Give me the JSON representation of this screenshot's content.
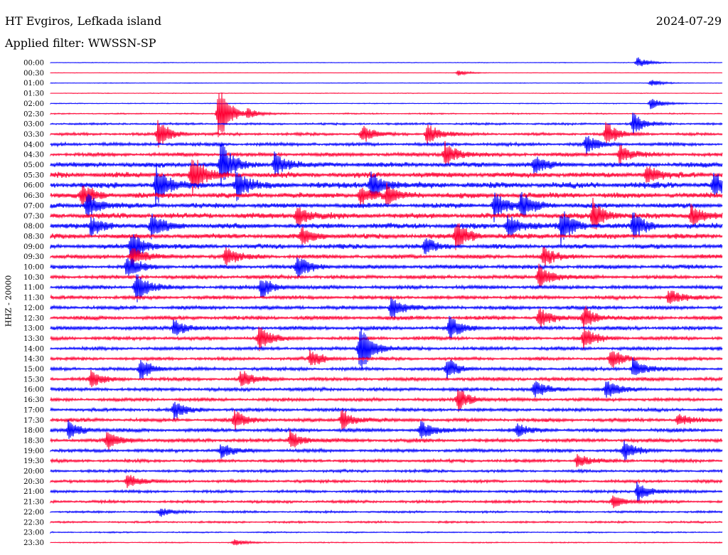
{
  "header": {
    "station": "HT Evgiros, Lefkada island",
    "filter": "Applied filter: WWSSN-SP",
    "date": "2024-07-29"
  },
  "colors": {
    "even_trace": "#0000ff",
    "odd_trace": "#ff0033",
    "background": "#ffffff"
  },
  "chart_data": {
    "type": "line",
    "chart_kind": "helicorder (seismogram drum)",
    "ylabel": "HHZ - 20000",
    "tick_labels": [
      "00:00",
      "00:30",
      "01:00",
      "01:30",
      "02:00",
      "02:30",
      "03:00",
      "03:30",
      "04:00",
      "04:30",
      "05:00",
      "05:30",
      "06:00",
      "06:30",
      "07:00",
      "07:30",
      "08:00",
      "08:30",
      "09:00",
      "09:30",
      "10:00",
      "10:30",
      "11:00",
      "11:30",
      "12:00",
      "12:30",
      "13:00",
      "13:30",
      "14:00",
      "14:30",
      "15:00",
      "15:30",
      "16:00",
      "16:30",
      "17:00",
      "17:30",
      "18:00",
      "18:30",
      "19:00",
      "19:30",
      "20:00",
      "20:30",
      "21:00",
      "21:30",
      "22:00",
      "22:30",
      "23:00",
      "23:30"
    ],
    "line_minutes": 30,
    "x_range_minutes": [
      0,
      30
    ],
    "trace_colors_alternate": [
      "blue",
      "red"
    ],
    "noise_level": [
      0.3,
      0.2,
      0.3,
      0.3,
      0.4,
      0.6,
      1.0,
      1.3,
      1.6,
      1.8,
      2.4,
      2.6,
      2.8,
      2.6,
      2.4,
      2.6,
      2.6,
      2.4,
      2.2,
      2.0,
      1.9,
      1.8,
      1.8,
      1.7,
      1.8,
      1.9,
      1.8,
      1.7,
      1.6,
      1.5,
      1.6,
      1.7,
      1.7,
      1.6,
      1.6,
      1.7,
      1.8,
      1.7,
      1.6,
      1.5,
      1.3,
      1.4,
      1.3,
      1.3,
      1.0,
      0.9,
      0.6,
      0.5
    ],
    "events": [
      {
        "line": 0,
        "minute": 26.2,
        "amplitude": 8
      },
      {
        "line": 1,
        "minute": 18.2,
        "amplitude": 4
      },
      {
        "line": 2,
        "minute": 26.8,
        "amplitude": 5
      },
      {
        "line": 4,
        "minute": 26.8,
        "amplitude": 9
      },
      {
        "line": 5,
        "minute": 8.8,
        "amplitude": 6
      },
      {
        "line": 5,
        "minute": 7.5,
        "amplitude": 45
      },
      {
        "line": 6,
        "minute": 26.0,
        "amplitude": 16
      },
      {
        "line": 7,
        "minute": 4.8,
        "amplitude": 22
      },
      {
        "line": 7,
        "minute": 13.9,
        "amplitude": 14
      },
      {
        "line": 7,
        "minute": 16.8,
        "amplitude": 18
      },
      {
        "line": 7,
        "minute": 24.8,
        "amplitude": 18
      },
      {
        "line": 8,
        "minute": 23.9,
        "amplitude": 14
      },
      {
        "line": 9,
        "minute": 17.6,
        "amplitude": 20
      },
      {
        "line": 9,
        "minute": 25.4,
        "amplitude": 14
      },
      {
        "line": 10,
        "minute": 7.6,
        "amplitude": 35
      },
      {
        "line": 10,
        "minute": 10.0,
        "amplitude": 18
      },
      {
        "line": 10,
        "minute": 21.6,
        "amplitude": 12
      },
      {
        "line": 11,
        "minute": 6.3,
        "amplitude": 32
      },
      {
        "line": 11,
        "minute": 26.6,
        "amplitude": 14
      },
      {
        "line": 12,
        "minute": 4.7,
        "amplitude": 28
      },
      {
        "line": 12,
        "minute": 8.3,
        "amplitude": 22
      },
      {
        "line": 12,
        "minute": 14.3,
        "amplitude": 24
      },
      {
        "line": 12,
        "minute": 29.6,
        "amplitude": 20
      },
      {
        "line": 13,
        "minute": 1.4,
        "amplitude": 18
      },
      {
        "line": 13,
        "minute": 13.8,
        "amplitude": 14
      },
      {
        "line": 13,
        "minute": 15.0,
        "amplitude": 14
      },
      {
        "line": 14,
        "minute": 1.6,
        "amplitude": 20
      },
      {
        "line": 14,
        "minute": 19.8,
        "amplitude": 22
      },
      {
        "line": 14,
        "minute": 21.0,
        "amplitude": 20
      },
      {
        "line": 15,
        "minute": 11.0,
        "amplitude": 16
      },
      {
        "line": 15,
        "minute": 24.2,
        "amplitude": 24
      },
      {
        "line": 15,
        "minute": 28.6,
        "amplitude": 16
      },
      {
        "line": 16,
        "minute": 1.8,
        "amplitude": 14
      },
      {
        "line": 16,
        "minute": 4.5,
        "amplitude": 18
      },
      {
        "line": 16,
        "minute": 20.4,
        "amplitude": 20
      },
      {
        "line": 16,
        "minute": 22.8,
        "amplitude": 26
      },
      {
        "line": 16,
        "minute": 26.0,
        "amplitude": 20
      },
      {
        "line": 17,
        "minute": 18.1,
        "amplitude": 22
      },
      {
        "line": 17,
        "minute": 11.2,
        "amplitude": 14
      },
      {
        "line": 18,
        "minute": 3.6,
        "amplitude": 26
      },
      {
        "line": 18,
        "minute": 16.7,
        "amplitude": 12
      },
      {
        "line": 19,
        "minute": 3.6,
        "amplitude": 16
      },
      {
        "line": 19,
        "minute": 7.8,
        "amplitude": 14
      },
      {
        "line": 19,
        "minute": 22.0,
        "amplitude": 14
      },
      {
        "line": 20,
        "minute": 3.4,
        "amplitude": 18
      },
      {
        "line": 20,
        "minute": 11.0,
        "amplitude": 20
      },
      {
        "line": 21,
        "minute": 21.8,
        "amplitude": 20
      },
      {
        "line": 22,
        "minute": 9.4,
        "amplitude": 16
      },
      {
        "line": 22,
        "minute": 3.8,
        "amplitude": 24
      },
      {
        "line": 23,
        "minute": 27.6,
        "amplitude": 12
      },
      {
        "line": 24,
        "minute": 15.2,
        "amplitude": 18
      },
      {
        "line": 25,
        "minute": 21.8,
        "amplitude": 16
      },
      {
        "line": 25,
        "minute": 23.8,
        "amplitude": 18
      },
      {
        "line": 26,
        "minute": 5.5,
        "amplitude": 14
      },
      {
        "line": 26,
        "minute": 17.8,
        "amplitude": 18
      },
      {
        "line": 27,
        "minute": 9.3,
        "amplitude": 18
      },
      {
        "line": 27,
        "minute": 23.8,
        "amplitude": 16
      },
      {
        "line": 28,
        "minute": 13.8,
        "amplitude": 40
      },
      {
        "line": 29,
        "minute": 11.6,
        "amplitude": 14
      },
      {
        "line": 29,
        "minute": 25.0,
        "amplitude": 16
      },
      {
        "line": 30,
        "minute": 4.0,
        "amplitude": 16
      },
      {
        "line": 30,
        "minute": 17.7,
        "amplitude": 16
      },
      {
        "line": 30,
        "minute": 26.0,
        "amplitude": 16
      },
      {
        "line": 31,
        "minute": 1.8,
        "amplitude": 12
      },
      {
        "line": 31,
        "minute": 8.5,
        "amplitude": 14
      },
      {
        "line": 32,
        "minute": 21.6,
        "amplitude": 14
      },
      {
        "line": 32,
        "minute": 24.8,
        "amplitude": 14
      },
      {
        "line": 33,
        "minute": 18.2,
        "amplitude": 18
      },
      {
        "line": 34,
        "minute": 5.5,
        "amplitude": 14
      },
      {
        "line": 35,
        "minute": 8.2,
        "amplitude": 14
      },
      {
        "line": 35,
        "minute": 13.0,
        "amplitude": 16
      },
      {
        "line": 35,
        "minute": 28.0,
        "amplitude": 10
      },
      {
        "line": 36,
        "minute": 0.8,
        "amplitude": 14
      },
      {
        "line": 36,
        "minute": 16.5,
        "amplitude": 14
      },
      {
        "line": 36,
        "minute": 20.8,
        "amplitude": 10
      },
      {
        "line": 37,
        "minute": 2.5,
        "amplitude": 14
      },
      {
        "line": 37,
        "minute": 10.7,
        "amplitude": 14
      },
      {
        "line": 38,
        "minute": 7.6,
        "amplitude": 12
      },
      {
        "line": 38,
        "minute": 25.6,
        "amplitude": 14
      },
      {
        "line": 39,
        "minute": 23.5,
        "amplitude": 10
      },
      {
        "line": 41,
        "minute": 3.4,
        "amplitude": 12
      },
      {
        "line": 42,
        "minute": 26.2,
        "amplitude": 16
      },
      {
        "line": 43,
        "minute": 25.1,
        "amplitude": 10
      },
      {
        "line": 44,
        "minute": 4.9,
        "amplitude": 6
      },
      {
        "line": 47,
        "minute": 8.2,
        "amplitude": 5
      }
    ]
  }
}
